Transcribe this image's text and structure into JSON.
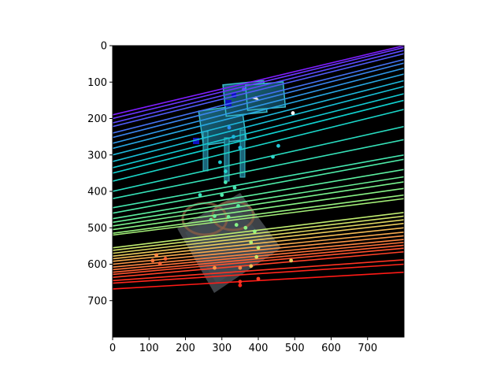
{
  "chart_data": {
    "type": "image",
    "xlim": [
      0,
      800
    ],
    "ylim": [
      800,
      0
    ],
    "x_ticks": [
      0,
      100,
      200,
      300,
      400,
      500,
      600,
      700
    ],
    "y_ticks": [
      0,
      100,
      200,
      300,
      400,
      500,
      600,
      700
    ],
    "x_tick_labels": [
      "0",
      "100",
      "200",
      "300",
      "400",
      "500",
      "600",
      "700"
    ],
    "y_tick_labels": [
      "0",
      "100",
      "200",
      "300",
      "400",
      "500",
      "600",
      "700"
    ],
    "grid": false,
    "background_color": "#000000",
    "description_colormap": "rainbow",
    "epipolar_lines": [
      {
        "y0": 190,
        "y1": 0,
        "color": "#7f1dff"
      },
      {
        "y0": 200,
        "y1": 5,
        "color": "#6a35ff"
      },
      {
        "y0": 212,
        "y1": 13,
        "color": "#5c48fc"
      },
      {
        "y0": 222,
        "y1": 22,
        "color": "#4f5cf8"
      },
      {
        "y0": 240,
        "y1": 38,
        "color": "#4472f3"
      },
      {
        "y0": 252,
        "y1": 48,
        "color": "#3a85ee"
      },
      {
        "y0": 268,
        "y1": 62,
        "color": "#2f98e8"
      },
      {
        "y0": 282,
        "y1": 78,
        "color": "#27a8e2"
      },
      {
        "y0": 300,
        "y1": 96,
        "color": "#1eb8dc"
      },
      {
        "y0": 318,
        "y1": 112,
        "color": "#18c2d8"
      },
      {
        "y0": 335,
        "y1": 132,
        "color": "#12cad3"
      },
      {
        "y0": 350,
        "y1": 150,
        "color": "#10d0cf"
      },
      {
        "y0": 372,
        "y1": 175,
        "color": "#1ad6c9"
      },
      {
        "y0": 400,
        "y1": 222,
        "color": "#28dcc0"
      },
      {
        "y0": 420,
        "y1": 258,
        "color": "#36e2b8"
      },
      {
        "y0": 445,
        "y1": 300,
        "color": "#44e8b0"
      },
      {
        "y0": 460,
        "y1": 312,
        "color": "#4eeca8"
      },
      {
        "y0": 475,
        "y1": 340,
        "color": "#5cf0a0"
      },
      {
        "y0": 485,
        "y1": 360,
        "color": "#6af298"
      },
      {
        "y0": 495,
        "y1": 374,
        "color": "#7af48e"
      },
      {
        "y0": 505,
        "y1": 392,
        "color": "#88f486"
      },
      {
        "y0": 515,
        "y1": 410,
        "color": "#98f27e"
      },
      {
        "y0": 520,
        "y1": 420,
        "color": "#a4f078"
      },
      {
        "y0": 555,
        "y1": 458,
        "color": "#c0ec70"
      },
      {
        "y0": 562,
        "y1": 468,
        "color": "#d2e468"
      },
      {
        "y0": 570,
        "y1": 478,
        "color": "#e0d862"
      },
      {
        "y0": 578,
        "y1": 488,
        "color": "#eccb5c"
      },
      {
        "y0": 585,
        "y1": 500,
        "color": "#f4bb55"
      },
      {
        "y0": 592,
        "y1": 512,
        "color": "#f8a94e"
      },
      {
        "y0": 600,
        "y1": 522,
        "color": "#fc9748"
      },
      {
        "y0": 608,
        "y1": 532,
        "color": "#fe8541"
      },
      {
        "y0": 615,
        "y1": 540,
        "color": "#ff733a"
      },
      {
        "y0": 622,
        "y1": 548,
        "color": "#ff6234"
      },
      {
        "y0": 628,
        "y1": 556,
        "color": "#ff512e"
      },
      {
        "y0": 636,
        "y1": 566,
        "color": "#ff4128"
      },
      {
        "y0": 645,
        "y1": 588,
        "color": "#ff3322"
      },
      {
        "y0": 652,
        "y1": 600,
        "color": "#ff261c"
      },
      {
        "y0": 668,
        "y1": 622,
        "color": "#ff1a16"
      }
    ],
    "points": [
      {
        "x": 360,
        "y": 120,
        "color": "#5a52ff"
      },
      {
        "x": 495,
        "y": 185,
        "color": "#ffffff"
      },
      {
        "x": 320,
        "y": 225,
        "color": "#2a8ef0"
      },
      {
        "x": 332,
        "y": 250,
        "color": "#1eb8dc"
      },
      {
        "x": 455,
        "y": 275,
        "color": "#26c4d6"
      },
      {
        "x": 350,
        "y": 280,
        "color": "#1eb8dc"
      },
      {
        "x": 440,
        "y": 305,
        "color": "#30d8cc"
      },
      {
        "x": 295,
        "y": 320,
        "color": "#1ecad2"
      },
      {
        "x": 310,
        "y": 345,
        "color": "#28d6cc"
      },
      {
        "x": 240,
        "y": 410,
        "color": "#38e2bc"
      },
      {
        "x": 310,
        "y": 375,
        "color": "#48e6b4"
      },
      {
        "x": 335,
        "y": 390,
        "color": "#48e6b4"
      },
      {
        "x": 300,
        "y": 410,
        "color": "#52eaac"
      },
      {
        "x": 345,
        "y": 440,
        "color": "#5cf0a0"
      },
      {
        "x": 280,
        "y": 468,
        "color": "#6af298"
      },
      {
        "x": 270,
        "y": 478,
        "color": "#70f294"
      },
      {
        "x": 318,
        "y": 470,
        "color": "#70f294"
      },
      {
        "x": 340,
        "y": 492,
        "color": "#88f486"
      },
      {
        "x": 365,
        "y": 500,
        "color": "#90f482"
      },
      {
        "x": 390,
        "y": 510,
        "color": "#98f27e"
      },
      {
        "x": 380,
        "y": 540,
        "color": "#b4ee74"
      },
      {
        "x": 400,
        "y": 555,
        "color": "#c0ec70"
      },
      {
        "x": 395,
        "y": 580,
        "color": "#d0e468"
      },
      {
        "x": 490,
        "y": 590,
        "color": "#e8cf5e"
      },
      {
        "x": 380,
        "y": 605,
        "color": "#f4bb55"
      },
      {
        "x": 280,
        "y": 610,
        "color": "#fc9748"
      },
      {
        "x": 350,
        "y": 610,
        "color": "#fe8541"
      },
      {
        "x": 110,
        "y": 590,
        "color": "#ff733a"
      },
      {
        "x": 130,
        "y": 598,
        "color": "#ff6234"
      },
      {
        "x": 145,
        "y": 585,
        "color": "#ff6234"
      },
      {
        "x": 120,
        "y": 575,
        "color": "#ff8a44"
      },
      {
        "x": 350,
        "y": 648,
        "color": "#ff3322"
      },
      {
        "x": 350,
        "y": 658,
        "color": "#ff261c"
      },
      {
        "x": 400,
        "y": 640,
        "color": "#ff4128"
      }
    ]
  }
}
